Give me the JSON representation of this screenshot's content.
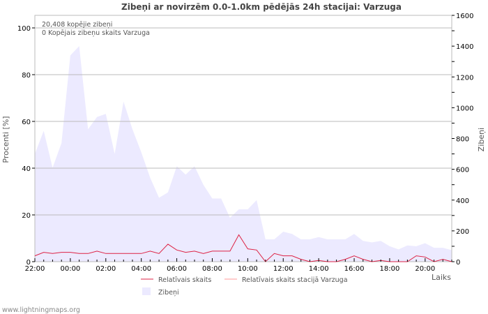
{
  "chart_data": {
    "type": "area",
    "title": "Zibeņi ar novirzēm 0.0-1.0km pēdējās 24h stacijai: Varzuga",
    "xlabel": "Laiks",
    "ylabel": "Procenti   [%]",
    "y2label": "Zibeņi",
    "ylim": [
      0,
      105
    ],
    "y2lim": [
      0,
      1600
    ],
    "yticks": [
      "0",
      "20",
      "40",
      "60",
      "80",
      "100"
    ],
    "y2ticks": [
      "0",
      "200",
      "400",
      "600",
      "800",
      "1000",
      "1200",
      "1400",
      "1600"
    ],
    "xticks": [
      "22:00",
      "00:00",
      "02:00",
      "04:00",
      "06:00",
      "08:00",
      "10:00",
      "12:00",
      "14:00",
      "16:00",
      "18:00",
      "20:00"
    ],
    "annotations": [
      "20,408 kopējie zibeņi",
      "0 Kopējais zibeņu skaits Varzuga"
    ],
    "legend": [
      "Relatīvais skaits",
      "Relatīvais skaits stacijā Varzuga",
      "Zibeņi"
    ],
    "x_hours_from_start": "half-hour steps from 22:00, 48 points",
    "series": [
      {
        "name": "Zibeņi",
        "axis": "right",
        "color": "#eceaff",
        "values": [
          700,
          850,
          610,
          770,
          1340,
          1400,
          860,
          940,
          960,
          700,
          1040,
          860,
          710,
          545,
          415,
          450,
          620,
          565,
          620,
          500,
          410,
          410,
          285,
          340,
          340,
          400,
          145,
          145,
          195,
          180,
          145,
          145,
          160,
          145,
          145,
          145,
          180,
          135,
          125,
          135,
          100,
          80,
          105,
          100,
          120,
          90,
          90,
          75
        ]
      },
      {
        "name": "Relatīvais skaits",
        "axis": "left",
        "color": "#dd2244",
        "values": [
          2.5,
          4,
          3.5,
          4,
          4,
          3.5,
          3.5,
          4.5,
          3.5,
          3.5,
          3.5,
          3.5,
          3.5,
          4.5,
          3.5,
          7.5,
          5,
          4,
          4.5,
          3.5,
          4.5,
          4.5,
          4.5,
          11.5,
          5.5,
          5,
          0,
          3.5,
          2.5,
          2.5,
          1,
          0,
          0.5,
          0,
          0,
          1,
          2.5,
          1,
          0,
          0.5,
          0,
          0,
          0,
          2.5,
          2,
          0,
          1,
          0
        ]
      },
      {
        "name": "Relatīvais skaits stacijā Varzuga",
        "axis": "left",
        "color": "#ff9999",
        "values": []
      }
    ]
  },
  "footer": "www.lightningmaps.org"
}
